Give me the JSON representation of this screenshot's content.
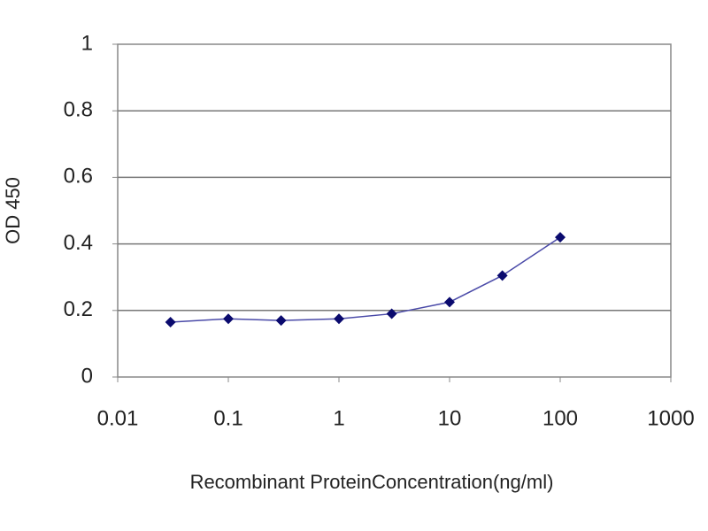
{
  "chart_data": {
    "type": "line",
    "x_label": "Recombinant ProteinConcentration(ng/ml)",
    "y_label": "OD 450",
    "x": [
      0.03,
      0.1,
      0.3,
      1,
      3,
      10,
      30,
      100
    ],
    "values": [
      0.165,
      0.175,
      0.17,
      0.175,
      0.19,
      0.225,
      0.305,
      0.42
    ],
    "color": "#4a4aa8",
    "marker_color": "#0a0a6e",
    "xscale": "log",
    "xlim": [
      0.01,
      1000
    ],
    "xticks": [
      0.01,
      0.1,
      1,
      10,
      100,
      1000
    ],
    "ylim": [
      0,
      1
    ],
    "yticks": [
      0,
      0.2,
      0.4,
      0.6,
      0.8,
      1
    ],
    "grid": true
  }
}
